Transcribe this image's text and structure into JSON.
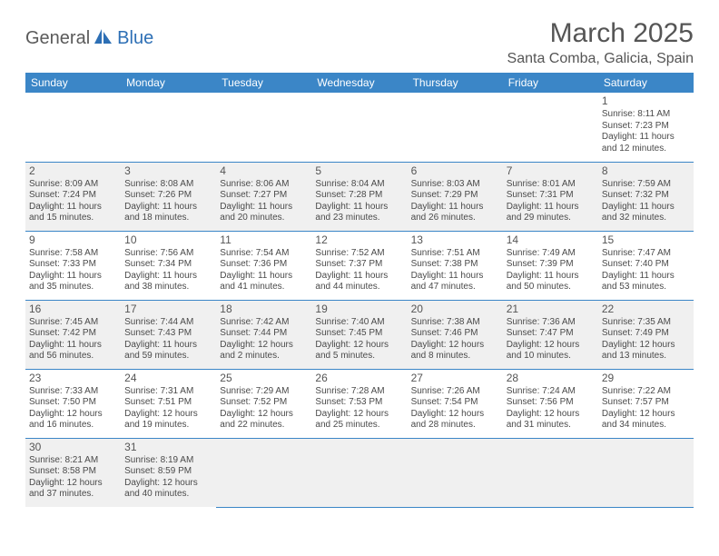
{
  "logo": {
    "part1": "General",
    "part2": "Blue"
  },
  "title": "March 2025",
  "location": "Santa Comba, Galicia, Spain",
  "colors": {
    "header_bg": "#3b86c7",
    "header_text": "#ffffff",
    "gray_cell": "#f0f0f0",
    "border": "#3b86c7",
    "logo_gray": "#5a5a5a",
    "logo_blue": "#2d6fb5",
    "text": "#4a4a4a"
  },
  "weekdays": [
    "Sunday",
    "Monday",
    "Tuesday",
    "Wednesday",
    "Thursday",
    "Friday",
    "Saturday"
  ],
  "weeks": [
    [
      {
        "empty": true
      },
      {
        "empty": true
      },
      {
        "empty": true
      },
      {
        "empty": true
      },
      {
        "empty": true
      },
      {
        "empty": true
      },
      {
        "day": "1",
        "gray": false,
        "sunrise": "Sunrise: 8:11 AM",
        "sunset": "Sunset: 7:23 PM",
        "daylight": "Daylight: 11 hours and 12 minutes."
      }
    ],
    [
      {
        "day": "2",
        "gray": true,
        "sunrise": "Sunrise: 8:09 AM",
        "sunset": "Sunset: 7:24 PM",
        "daylight": "Daylight: 11 hours and 15 minutes."
      },
      {
        "day": "3",
        "gray": true,
        "sunrise": "Sunrise: 8:08 AM",
        "sunset": "Sunset: 7:26 PM",
        "daylight": "Daylight: 11 hours and 18 minutes."
      },
      {
        "day": "4",
        "gray": true,
        "sunrise": "Sunrise: 8:06 AM",
        "sunset": "Sunset: 7:27 PM",
        "daylight": "Daylight: 11 hours and 20 minutes."
      },
      {
        "day": "5",
        "gray": true,
        "sunrise": "Sunrise: 8:04 AM",
        "sunset": "Sunset: 7:28 PM",
        "daylight": "Daylight: 11 hours and 23 minutes."
      },
      {
        "day": "6",
        "gray": true,
        "sunrise": "Sunrise: 8:03 AM",
        "sunset": "Sunset: 7:29 PM",
        "daylight": "Daylight: 11 hours and 26 minutes."
      },
      {
        "day": "7",
        "gray": true,
        "sunrise": "Sunrise: 8:01 AM",
        "sunset": "Sunset: 7:31 PM",
        "daylight": "Daylight: 11 hours and 29 minutes."
      },
      {
        "day": "8",
        "gray": true,
        "sunrise": "Sunrise: 7:59 AM",
        "sunset": "Sunset: 7:32 PM",
        "daylight": "Daylight: 11 hours and 32 minutes."
      }
    ],
    [
      {
        "day": "9",
        "gray": false,
        "sunrise": "Sunrise: 7:58 AM",
        "sunset": "Sunset: 7:33 PM",
        "daylight": "Daylight: 11 hours and 35 minutes."
      },
      {
        "day": "10",
        "gray": false,
        "sunrise": "Sunrise: 7:56 AM",
        "sunset": "Sunset: 7:34 PM",
        "daylight": "Daylight: 11 hours and 38 minutes."
      },
      {
        "day": "11",
        "gray": false,
        "sunrise": "Sunrise: 7:54 AM",
        "sunset": "Sunset: 7:36 PM",
        "daylight": "Daylight: 11 hours and 41 minutes."
      },
      {
        "day": "12",
        "gray": false,
        "sunrise": "Sunrise: 7:52 AM",
        "sunset": "Sunset: 7:37 PM",
        "daylight": "Daylight: 11 hours and 44 minutes."
      },
      {
        "day": "13",
        "gray": false,
        "sunrise": "Sunrise: 7:51 AM",
        "sunset": "Sunset: 7:38 PM",
        "daylight": "Daylight: 11 hours and 47 minutes."
      },
      {
        "day": "14",
        "gray": false,
        "sunrise": "Sunrise: 7:49 AM",
        "sunset": "Sunset: 7:39 PM",
        "daylight": "Daylight: 11 hours and 50 minutes."
      },
      {
        "day": "15",
        "gray": false,
        "sunrise": "Sunrise: 7:47 AM",
        "sunset": "Sunset: 7:40 PM",
        "daylight": "Daylight: 11 hours and 53 minutes."
      }
    ],
    [
      {
        "day": "16",
        "gray": true,
        "sunrise": "Sunrise: 7:45 AM",
        "sunset": "Sunset: 7:42 PM",
        "daylight": "Daylight: 11 hours and 56 minutes."
      },
      {
        "day": "17",
        "gray": true,
        "sunrise": "Sunrise: 7:44 AM",
        "sunset": "Sunset: 7:43 PM",
        "daylight": "Daylight: 11 hours and 59 minutes."
      },
      {
        "day": "18",
        "gray": true,
        "sunrise": "Sunrise: 7:42 AM",
        "sunset": "Sunset: 7:44 PM",
        "daylight": "Daylight: 12 hours and 2 minutes."
      },
      {
        "day": "19",
        "gray": true,
        "sunrise": "Sunrise: 7:40 AM",
        "sunset": "Sunset: 7:45 PM",
        "daylight": "Daylight: 12 hours and 5 minutes."
      },
      {
        "day": "20",
        "gray": true,
        "sunrise": "Sunrise: 7:38 AM",
        "sunset": "Sunset: 7:46 PM",
        "daylight": "Daylight: 12 hours and 8 minutes."
      },
      {
        "day": "21",
        "gray": true,
        "sunrise": "Sunrise: 7:36 AM",
        "sunset": "Sunset: 7:47 PM",
        "daylight": "Daylight: 12 hours and 10 minutes."
      },
      {
        "day": "22",
        "gray": true,
        "sunrise": "Sunrise: 7:35 AM",
        "sunset": "Sunset: 7:49 PM",
        "daylight": "Daylight: 12 hours and 13 minutes."
      }
    ],
    [
      {
        "day": "23",
        "gray": false,
        "sunrise": "Sunrise: 7:33 AM",
        "sunset": "Sunset: 7:50 PM",
        "daylight": "Daylight: 12 hours and 16 minutes."
      },
      {
        "day": "24",
        "gray": false,
        "sunrise": "Sunrise: 7:31 AM",
        "sunset": "Sunset: 7:51 PM",
        "daylight": "Daylight: 12 hours and 19 minutes."
      },
      {
        "day": "25",
        "gray": false,
        "sunrise": "Sunrise: 7:29 AM",
        "sunset": "Sunset: 7:52 PM",
        "daylight": "Daylight: 12 hours and 22 minutes."
      },
      {
        "day": "26",
        "gray": false,
        "sunrise": "Sunrise: 7:28 AM",
        "sunset": "Sunset: 7:53 PM",
        "daylight": "Daylight: 12 hours and 25 minutes."
      },
      {
        "day": "27",
        "gray": false,
        "sunrise": "Sunrise: 7:26 AM",
        "sunset": "Sunset: 7:54 PM",
        "daylight": "Daylight: 12 hours and 28 minutes."
      },
      {
        "day": "28",
        "gray": false,
        "sunrise": "Sunrise: 7:24 AM",
        "sunset": "Sunset: 7:56 PM",
        "daylight": "Daylight: 12 hours and 31 minutes."
      },
      {
        "day": "29",
        "gray": false,
        "sunrise": "Sunrise: 7:22 AM",
        "sunset": "Sunset: 7:57 PM",
        "daylight": "Daylight: 12 hours and 34 minutes."
      }
    ],
    [
      {
        "day": "30",
        "gray": true,
        "sunrise": "Sunrise: 8:21 AM",
        "sunset": "Sunset: 8:58 PM",
        "daylight": "Daylight: 12 hours and 37 minutes."
      },
      {
        "day": "31",
        "gray": true,
        "sunrise": "Sunrise: 8:19 AM",
        "sunset": "Sunset: 8:59 PM",
        "daylight": "Daylight: 12 hours and 40 minutes."
      },
      {
        "empty": true,
        "gray": true
      },
      {
        "empty": true,
        "gray": true
      },
      {
        "empty": true,
        "gray": true
      },
      {
        "empty": true,
        "gray": true
      },
      {
        "empty": true,
        "gray": true
      }
    ]
  ]
}
